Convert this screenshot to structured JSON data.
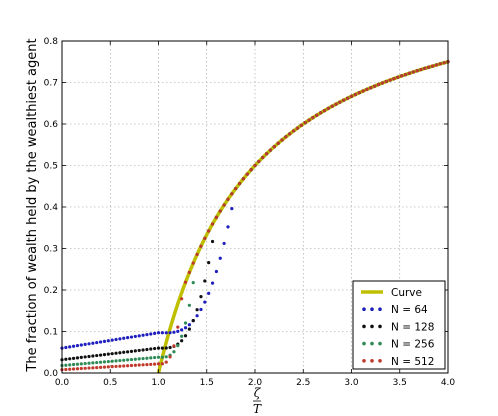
{
  "chart_data": {
    "type": "scatter",
    "title": "",
    "xlabel": "ζ/T",
    "xlabel_numerator": "ζ",
    "xlabel_denominator": "T",
    "ylabel": "The fraction of wealth held by the wealthiest agent",
    "xlim": [
      0.0,
      4.0
    ],
    "ylim": [
      0.0,
      0.8
    ],
    "xticks": [
      0.0,
      0.5,
      1.0,
      1.5,
      2.0,
      2.5,
      3.0,
      3.5,
      4.0
    ],
    "xtick_labels": [
      "0.0",
      "0.5",
      "1.0",
      "1.5",
      "2.0",
      "2.5",
      "3.0",
      "3.5",
      "4.0"
    ],
    "yticks": [
      0.0,
      0.1,
      0.2,
      0.3,
      0.4,
      0.5,
      0.6,
      0.7,
      0.8
    ],
    "ytick_labels": [
      "0.0",
      "0.1",
      "0.2",
      "0.3",
      "0.4",
      "0.5",
      "0.6",
      "0.7",
      "0.8"
    ],
    "grid": true,
    "legend_position": "lower-right",
    "curve": {
      "name": "Curve",
      "color": "#bfbf00",
      "x_start": 1.0,
      "x_end": 4.0,
      "formula": "1 - 1/x"
    },
    "series": [
      {
        "name": "N = 64",
        "color": "#1f1fbf",
        "y_low_start": 0.06,
        "y_low_end": 0.097,
        "transition_end": 1.8
      },
      {
        "name": "N = 128",
        "color": "#111111",
        "y_low_start": 0.032,
        "y_low_end": 0.06,
        "transition_end": 1.6
      },
      {
        "name": "N = 256",
        "color": "#2e8b57",
        "y_low_start": 0.018,
        "y_low_end": 0.038,
        "transition_end": 1.4
      },
      {
        "name": "N = 512",
        "color": "#c0392b",
        "y_low_start": 0.008,
        "y_low_end": 0.022,
        "transition_end": 1.25
      }
    ],
    "x_step": 0.04
  }
}
